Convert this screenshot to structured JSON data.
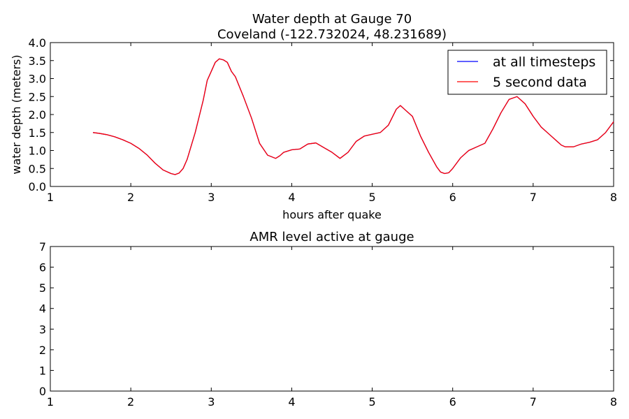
{
  "chart_data": [
    {
      "type": "line",
      "title": "Water depth at Gauge 70",
      "subtitle": "Coveland  (-122.732024, 48.231689)",
      "xlabel": "hours after quake",
      "ylabel": "water depth (meters)",
      "xlim": [
        1,
        8
      ],
      "ylim": [
        0,
        4
      ],
      "x_ticks": [
        "1",
        "2",
        "3",
        "4",
        "5",
        "6",
        "7",
        "8"
      ],
      "y_ticks": [
        "0.0",
        "0.5",
        "1.0",
        "1.5",
        "2.0",
        "2.5",
        "3.0",
        "3.5",
        "4.0"
      ],
      "grid": false,
      "legend": "top-right",
      "x": [
        1.53,
        1.6,
        1.7,
        1.8,
        1.9,
        2.0,
        2.1,
        2.2,
        2.3,
        2.4,
        2.5,
        2.55,
        2.6,
        2.65,
        2.7,
        2.8,
        2.9,
        2.95,
        3.0,
        3.05,
        3.1,
        3.15,
        3.2,
        3.25,
        3.3,
        3.4,
        3.5,
        3.6,
        3.7,
        3.8,
        3.85,
        3.9,
        4.0,
        4.1,
        4.2,
        4.3,
        4.4,
        4.5,
        4.6,
        4.7,
        4.8,
        4.9,
        5.0,
        5.1,
        5.2,
        5.3,
        5.35,
        5.4,
        5.5,
        5.6,
        5.7,
        5.8,
        5.85,
        5.9,
        5.95,
        6.0,
        6.1,
        6.2,
        6.3,
        6.4,
        6.5,
        6.6,
        6.7,
        6.8,
        6.9,
        7.0,
        7.1,
        7.2,
        7.3,
        7.35,
        7.4,
        7.5,
        7.6,
        7.7,
        7.8,
        7.9,
        8.0
      ],
      "series": [
        {
          "name": "at all timesteps",
          "color": "#0000ff",
          "values": [
            1.5,
            1.48,
            1.44,
            1.38,
            1.3,
            1.2,
            1.06,
            0.88,
            0.65,
            0.46,
            0.36,
            0.33,
            0.37,
            0.5,
            0.75,
            1.5,
            2.4,
            2.95,
            3.2,
            3.45,
            3.55,
            3.52,
            3.45,
            3.2,
            3.05,
            2.5,
            1.9,
            1.2,
            0.87,
            0.78,
            0.85,
            0.95,
            1.02,
            1.04,
            1.18,
            1.21,
            1.08,
            0.95,
            0.78,
            0.95,
            1.25,
            1.4,
            1.45,
            1.5,
            1.7,
            2.15,
            2.25,
            2.15,
            1.95,
            1.4,
            0.95,
            0.55,
            0.4,
            0.36,
            0.38,
            0.5,
            0.8,
            1.0,
            1.1,
            1.2,
            1.6,
            2.05,
            2.42,
            2.5,
            2.3,
            1.95,
            1.65,
            1.45,
            1.25,
            1.15,
            1.1,
            1.1,
            1.18,
            1.23,
            1.3,
            1.5,
            1.8
          ]
        },
        {
          "name": "5 second data",
          "color": "#ff0000",
          "values": [
            1.5,
            1.48,
            1.44,
            1.38,
            1.3,
            1.2,
            1.06,
            0.88,
            0.65,
            0.46,
            0.36,
            0.33,
            0.37,
            0.5,
            0.75,
            1.5,
            2.4,
            2.95,
            3.2,
            3.45,
            3.55,
            3.52,
            3.45,
            3.2,
            3.05,
            2.5,
            1.9,
            1.2,
            0.87,
            0.78,
            0.85,
            0.95,
            1.02,
            1.04,
            1.18,
            1.21,
            1.08,
            0.95,
            0.78,
            0.95,
            1.25,
            1.4,
            1.45,
            1.5,
            1.7,
            2.15,
            2.25,
            2.15,
            1.95,
            1.4,
            0.95,
            0.55,
            0.4,
            0.36,
            0.38,
            0.5,
            0.8,
            1.0,
            1.1,
            1.2,
            1.6,
            2.05,
            2.42,
            2.5,
            2.3,
            1.95,
            1.65,
            1.45,
            1.25,
            1.15,
            1.1,
            1.1,
            1.18,
            1.23,
            1.3,
            1.5,
            1.8
          ]
        }
      ]
    },
    {
      "type": "line",
      "title": "AMR level active at gauge",
      "xlabel": "",
      "ylabel": "",
      "xlim": [
        1,
        8
      ],
      "ylim": [
        0,
        7
      ],
      "x_ticks": [
        "1",
        "2",
        "3",
        "4",
        "5",
        "6",
        "7",
        "8"
      ],
      "y_ticks": [
        "0",
        "1",
        "2",
        "3",
        "4",
        "5",
        "6",
        "7"
      ],
      "grid": false,
      "series": []
    }
  ]
}
